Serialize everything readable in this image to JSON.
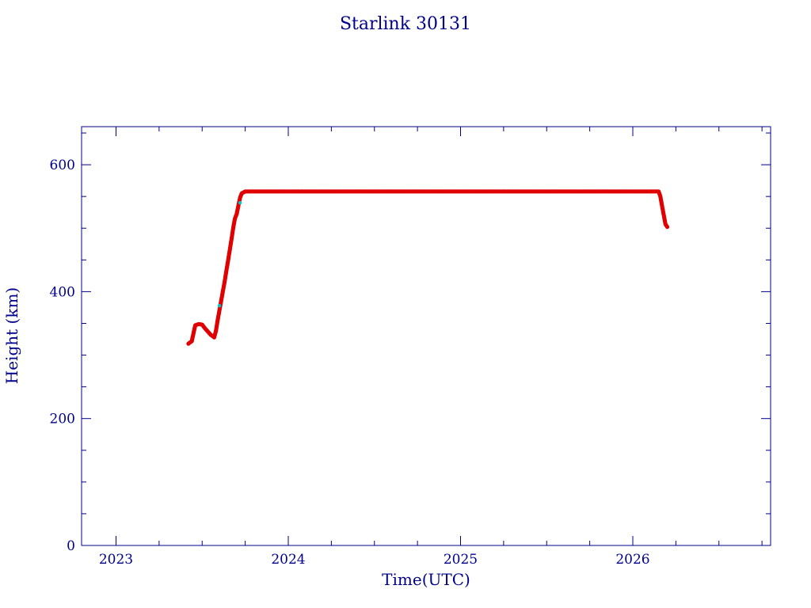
{
  "chart_data": {
    "type": "scatter",
    "title": "Starlink 30131",
    "xlabel": "Time(UTC)",
    "ylabel": "Height (km)",
    "xlim": [
      2022.8,
      2026.8
    ],
    "ylim": [
      0,
      660
    ],
    "x_ticks": [
      2023,
      2024,
      2025,
      2026
    ],
    "x_tick_labels": [
      "2023",
      "2024",
      "2025",
      "2026"
    ],
    "y_ticks": [
      0,
      200,
      400,
      600
    ],
    "y_tick_labels": [
      "0",
      "200",
      "400",
      "600"
    ],
    "grid": false,
    "colors": {
      "axis": "#00008b",
      "series": "#e00000",
      "highlight": "#00c8c8"
    },
    "series": [
      {
        "points": [
          [
            2023.42,
            318
          ],
          [
            2023.44,
            322
          ],
          [
            2023.45,
            335
          ],
          [
            2023.46,
            347
          ],
          [
            2023.48,
            349
          ],
          [
            2023.5,
            348
          ],
          [
            2023.52,
            341
          ],
          [
            2023.55,
            332
          ],
          [
            2023.57,
            328
          ],
          [
            2023.58,
            338
          ],
          [
            2023.59,
            355
          ],
          [
            2023.6,
            370
          ],
          [
            2023.61,
            385
          ],
          [
            2023.62,
            400
          ],
          [
            2023.63,
            415
          ],
          [
            2023.64,
            432
          ],
          [
            2023.65,
            448
          ],
          [
            2023.66,
            465
          ],
          [
            2023.67,
            482
          ],
          [
            2023.68,
            500
          ],
          [
            2023.69,
            515
          ],
          [
            2023.7,
            522
          ],
          [
            2023.71,
            535
          ],
          [
            2023.72,
            548
          ],
          [
            2023.73,
            555
          ],
          [
            2023.75,
            558
          ],
          [
            2023.8,
            558
          ],
          [
            2023.9,
            558
          ],
          [
            2024.0,
            558
          ],
          [
            2024.1,
            558
          ],
          [
            2024.2,
            558
          ],
          [
            2024.3,
            558
          ],
          [
            2024.4,
            558
          ],
          [
            2024.5,
            558
          ],
          [
            2024.6,
            558
          ],
          [
            2024.7,
            558
          ],
          [
            2024.8,
            558
          ],
          [
            2024.9,
            558
          ],
          [
            2025.0,
            558
          ],
          [
            2025.1,
            558
          ],
          [
            2025.2,
            558
          ],
          [
            2025.3,
            558
          ],
          [
            2025.4,
            558
          ],
          [
            2025.5,
            558
          ],
          [
            2025.6,
            558
          ],
          [
            2025.7,
            558
          ],
          [
            2025.8,
            558
          ],
          [
            2025.9,
            558
          ],
          [
            2026.0,
            558
          ],
          [
            2026.1,
            558
          ],
          [
            2026.15,
            558
          ],
          [
            2026.16,
            550
          ],
          [
            2026.17,
            535
          ],
          [
            2026.18,
            520
          ],
          [
            2026.19,
            506
          ],
          [
            2026.2,
            502
          ]
        ]
      },
      {
        "points": [
          [
            2023.6,
            378
          ],
          [
            2023.72,
            540
          ]
        ]
      }
    ]
  }
}
